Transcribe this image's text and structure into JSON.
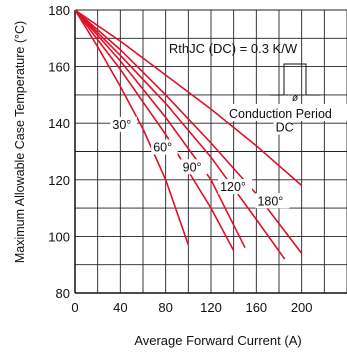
{
  "chart_data": {
    "type": "line",
    "title": "",
    "xlabel": "Average Forward Current (A)",
    "ylabel": "Maximum Allowable Case Temperature (°C)",
    "xlim": [
      0,
      200
    ],
    "ylim": [
      80,
      180
    ],
    "grid": true,
    "x_ticks": [
      "0",
      "40",
      "80",
      "120",
      "160",
      "200"
    ],
    "y_ticks": [
      "80",
      "100",
      "120",
      "140",
      "160",
      "180"
    ],
    "series": [
      {
        "name": "30°",
        "points": [
          [
            0,
            180
          ],
          [
            20,
            167
          ],
          [
            40,
            153
          ],
          [
            60,
            138
          ],
          [
            80,
            120
          ],
          [
            100,
            97
          ]
        ]
      },
      {
        "name": "60°",
        "points": [
          [
            0,
            180
          ],
          [
            40,
            159
          ],
          [
            80,
            136
          ],
          [
            120,
            110
          ],
          [
            140,
            95
          ]
        ]
      },
      {
        "name": "90°",
        "points": [
          [
            0,
            180
          ],
          [
            40,
            162
          ],
          [
            80,
            142
          ],
          [
            120,
            120
          ],
          [
            150,
            96
          ]
        ]
      },
      {
        "name": "120°",
        "points": [
          [
            0,
            180
          ],
          [
            40,
            164
          ],
          [
            80,
            147
          ],
          [
            120,
            128
          ],
          [
            160,
            106
          ],
          [
            185,
            92
          ]
        ]
      },
      {
        "name": "180°",
        "points": [
          [
            0,
            180
          ],
          [
            40,
            166
          ],
          [
            80,
            150
          ],
          [
            120,
            133
          ],
          [
            160,
            115
          ],
          [
            200,
            94
          ]
        ]
      },
      {
        "name": "DC",
        "points": [
          [
            0,
            180
          ],
          [
            40,
            169
          ],
          [
            80,
            157
          ],
          [
            120,
            145
          ],
          [
            160,
            132
          ],
          [
            200,
            118
          ]
        ]
      }
    ],
    "annotations": {
      "rth": "RthJC (DC) = 0.3 K/W",
      "conduction": "Conduction Period",
      "phi": "ø"
    },
    "line_color": "#e0102a"
  }
}
